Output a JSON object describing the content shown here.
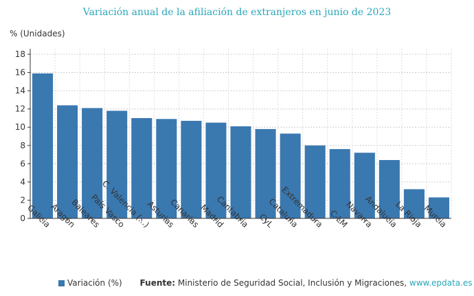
{
  "chart_data": {
    "type": "bar",
    "title": "Variación anual de la afiliación de extranjeros en junio de 2023",
    "ylabel": "% (Unidades)",
    "xlabel": "",
    "ylim": [
      0,
      18
    ],
    "yticks": [
      0,
      2,
      4,
      6,
      8,
      10,
      12,
      14,
      16,
      18
    ],
    "grid": true,
    "legend_position": "bottom-left",
    "color": "#3a78b0",
    "categories": [
      "Galicia",
      "Aragón",
      "Baleares",
      "País Vasco",
      "C. Valencia (...)",
      "Asturias",
      "Canarias",
      "Madrid",
      "Cantabria",
      "CyL",
      "Cataluña",
      "Extremadura",
      "C-LM",
      "Navarra",
      "Andalucía",
      "La Rioja",
      "Murcia"
    ],
    "series": [
      {
        "name": "Variación (%)",
        "values": [
          15.9,
          12.4,
          12.1,
          11.8,
          11.0,
          10.9,
          10.7,
          10.5,
          10.1,
          9.8,
          9.3,
          8.0,
          7.6,
          7.2,
          6.4,
          3.2,
          2.3
        ]
      }
    ]
  },
  "footer": {
    "source_label": "Fuente:",
    "source_text": "Ministerio de Seguridad Social, Inclusión y Migraciones,",
    "link": "www.epdata.es"
  }
}
